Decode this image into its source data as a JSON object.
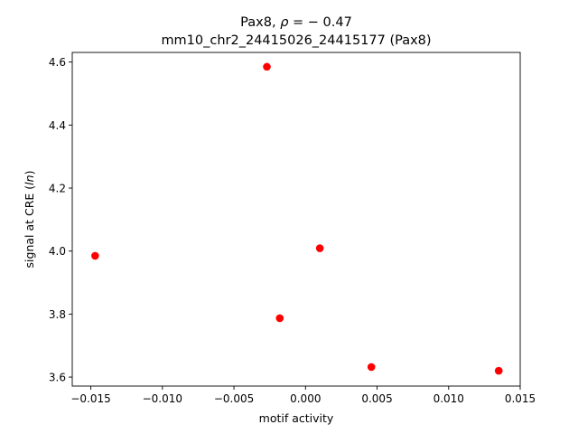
{
  "chart_data": {
    "type": "scatter",
    "title_line1_prefix": "Pax8, ",
    "title_rho_symbol": "ρ",
    "title_rho_value": " = − 0.47",
    "title_line2": "mm10_chr2_24415026_24415177 (Pax8)",
    "xlabel": "motif activity",
    "ylabel_prefix": "signal at CRE (",
    "ylabel_italic": "ln",
    "ylabel_suffix": ")",
    "xlim": [
      -0.0163,
      0.015
    ],
    "ylim": [
      3.5715,
      4.6305
    ],
    "xticks": [
      -0.015,
      -0.01,
      -0.005,
      0.0,
      0.005,
      0.01,
      0.015
    ],
    "xtick_labels": [
      "−0.015",
      "−0.010",
      "−0.005",
      "0.000",
      "0.005",
      "0.010",
      "0.015"
    ],
    "yticks": [
      3.6,
      3.8,
      4.0,
      4.2,
      4.4,
      4.6
    ],
    "ytick_labels": [
      "3.6",
      "3.8",
      "4.0",
      "4.2",
      "4.4",
      "4.6"
    ],
    "marker_color": "#ff0000",
    "grid": false,
    "points": [
      {
        "x": -0.0147,
        "y": 3.985
      },
      {
        "x": -0.0027,
        "y": 4.585
      },
      {
        "x": -0.0018,
        "y": 3.787
      },
      {
        "x": 0.001,
        "y": 4.009
      },
      {
        "x": 0.0046,
        "y": 3.632
      },
      {
        "x": 0.0135,
        "y": 3.62
      }
    ]
  }
}
